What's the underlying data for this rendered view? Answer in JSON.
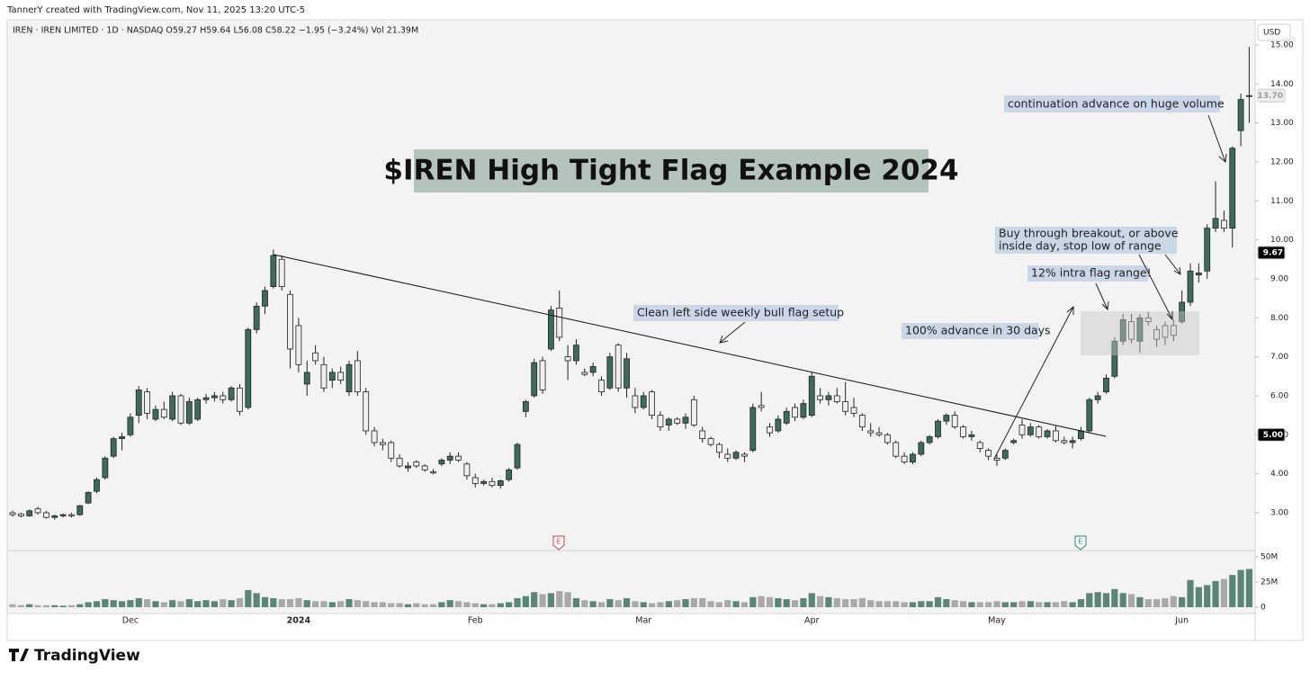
{
  "chart_data": {
    "type": "candlestick",
    "author_line": "TannerY created with TradingView.com, Nov 11, 2025 13:20 UTC-5",
    "symbol_line": "IREN · IREN LIMITED · 1D · NASDAQ   O59.27  H59.64  L56.08  C58.22  −1.95 (−3.24%)   Vol 21.39M",
    "currency": "USD",
    "title": "$IREN High Tight Flag Example 2024",
    "annotations": {
      "continuation": "continuation advance on huge volume",
      "buy": [
        "Buy through breakout, or above",
        "inside day, stop low of range"
      ],
      "range": "12% intra flag range!",
      "clean": "Clean left side weekly bull flag setup",
      "advance": "100% advance in 30 days"
    },
    "earnings": [
      "E",
      "E"
    ],
    "watermark": "TradingView",
    "categories": [
      null,
      null,
      null,
      null,
      null,
      null,
      null,
      null,
      null,
      null,
      null,
      null,
      null,
      null,
      "Dec",
      null,
      null,
      null,
      null,
      null,
      null,
      null,
      null,
      null,
      null,
      null,
      null,
      null,
      null,
      null,
      null,
      null,
      null,
      null,
      "2024",
      null,
      null,
      null,
      null,
      null,
      null,
      null,
      null,
      null,
      null,
      null,
      null,
      null,
      null,
      null,
      null,
      null,
      null,
      null,
      null,
      "Feb",
      null,
      null,
      null,
      null,
      null,
      null,
      null,
      null,
      null,
      null,
      null,
      null,
      null,
      null,
      null,
      null,
      null,
      null,
      null,
      "Mar",
      null,
      null,
      null,
      null,
      null,
      null,
      null,
      null,
      null,
      null,
      null,
      null,
      null,
      null,
      null,
      null,
      null,
      null,
      null,
      "Apr",
      null,
      null,
      null,
      null,
      null,
      null,
      null,
      null,
      null,
      null,
      null,
      null,
      null,
      null,
      null,
      null,
      null,
      null,
      null,
      null,
      null,
      "May",
      null,
      null,
      null,
      null,
      null,
      null,
      null,
      null,
      null,
      null,
      null,
      null,
      null,
      null,
      null,
      null,
      null,
      null,
      null,
      null,
      null,
      "Jun",
      null,
      null,
      null,
      null,
      null,
      null,
      null,
      null
    ],
    "open": [
      3.0,
      2.97,
      2.92,
      3.1,
      3.0,
      2.88,
      2.92,
      2.95,
      2.95,
      3.25,
      3.55,
      3.9,
      4.45,
      4.9,
      5.0,
      5.5,
      6.1,
      5.4,
      5.65,
      5.4,
      6.0,
      5.3,
      5.4,
      5.9,
      5.95,
      6.0,
      5.9,
      6.2,
      5.7,
      7.7,
      8.3,
      8.8,
      9.5,
      8.6,
      7.8,
      6.3,
      7.1,
      6.8,
      6.4,
      6.6,
      6.1,
      6.9,
      6.1,
      5.1,
      4.8,
      4.8,
      4.4,
      4.15,
      4.3,
      4.2,
      4.05,
      4.25,
      4.35,
      4.45,
      4.25,
      3.9,
      3.75,
      3.8,
      3.7,
      3.85,
      4.15,
      5.6,
      6.0,
      6.9,
      7.2,
      8.25,
      7.0,
      6.9,
      6.6,
      6.6,
      6.4,
      6.2,
      7.3,
      6.2,
      6.0,
      5.7,
      6.1,
      5.5,
      5.25,
      5.4,
      5.3,
      5.9,
      5.1,
      4.9,
      4.75,
      4.5,
      4.4,
      4.5,
      4.6,
      5.75,
      5.2,
      5.1,
      5.3,
      5.7,
      5.45,
      5.5,
      6.0,
      5.9,
      6.0,
      5.85,
      5.7,
      5.5,
      5.1,
      5.05,
      5.0,
      4.8,
      4.45,
      4.3,
      4.5,
      4.8,
      4.95,
      5.35,
      5.5,
      5.2,
      4.95,
      4.8,
      4.6,
      4.4,
      4.4,
      4.8,
      5.25,
      5.0,
      5.2,
      4.95,
      5.1,
      4.85,
      4.8,
      4.9,
      5.1,
      5.9,
      6.1,
      6.5,
      7.4,
      7.9,
      7.4,
      8.0,
      7.7,
      7.8,
      7.8,
      7.9,
      8.4,
      9.1,
      9.2,
      10.3,
      10.5,
      10.3,
      12.8,
      13.7
    ],
    "high": [
      3.05,
      3.0,
      3.08,
      3.15,
      3.05,
      2.95,
      2.98,
      3.0,
      3.2,
      3.55,
      3.9,
      4.45,
      4.95,
      5.05,
      5.55,
      6.25,
      6.2,
      5.75,
      5.85,
      6.1,
      6.05,
      5.95,
      5.95,
      6.05,
      6.1,
      6.1,
      6.25,
      6.3,
      7.75,
      8.4,
      8.8,
      9.75,
      9.6,
      8.7,
      8.0,
      6.9,
      7.3,
      7.0,
      6.7,
      6.75,
      6.9,
      7.15,
      6.2,
      5.2,
      4.9,
      4.85,
      4.5,
      4.3,
      4.35,
      4.25,
      4.12,
      4.4,
      4.55,
      4.55,
      4.3,
      4.0,
      3.85,
      3.9,
      3.85,
      4.15,
      4.8,
      5.9,
      6.95,
      7.0,
      8.3,
      8.7,
      7.3,
      7.45,
      6.7,
      6.85,
      6.5,
      7.1,
      7.35,
      7.1,
      6.2,
      6.1,
      6.15,
      5.6,
      5.45,
      5.45,
      5.55,
      6.0,
      5.2,
      4.95,
      4.8,
      4.65,
      4.6,
      4.55,
      5.8,
      6.1,
      5.3,
      5.5,
      5.7,
      5.8,
      5.9,
      6.6,
      6.2,
      6.1,
      6.2,
      6.35,
      5.95,
      5.55,
      5.3,
      5.2,
      5.05,
      4.85,
      4.55,
      4.55,
      4.85,
      5.0,
      5.4,
      5.55,
      5.6,
      5.25,
      5.1,
      4.85,
      4.65,
      4.5,
      4.65,
      4.9,
      5.4,
      5.3,
      5.25,
      5.15,
      5.25,
      4.95,
      4.95,
      5.2,
      5.95,
      6.1,
      6.55,
      7.5,
      8.1,
      8.1,
      8.1,
      8.15,
      7.8,
      7.9,
      7.95,
      8.7,
      9.4,
      9.4,
      10.4,
      11.5,
      10.75,
      12.4,
      13.75,
      14.95
    ],
    "low": [
      2.9,
      2.88,
      2.9,
      2.95,
      2.85,
      2.82,
      2.88,
      2.88,
      2.92,
      3.22,
      3.5,
      3.85,
      4.4,
      4.6,
      4.95,
      5.3,
      5.4,
      5.35,
      5.4,
      5.35,
      5.25,
      5.25,
      5.35,
      5.8,
      5.85,
      5.8,
      5.85,
      5.5,
      5.65,
      7.6,
      8.1,
      8.75,
      8.7,
      6.7,
      6.6,
      6.0,
      6.8,
      6.1,
      6.2,
      6.3,
      6.0,
      6.0,
      5.0,
      4.7,
      4.6,
      4.3,
      4.15,
      4.05,
      4.15,
      4.05,
      3.98,
      4.2,
      4.25,
      4.3,
      3.85,
      3.65,
      3.7,
      3.65,
      3.62,
      3.8,
      4.1,
      5.45,
      5.95,
      6.05,
      7.15,
      7.4,
      6.4,
      6.8,
      6.5,
      6.5,
      6.0,
      6.15,
      6.1,
      5.95,
      5.55,
      5.65,
      5.4,
      5.1,
      5.1,
      5.25,
      5.15,
      5.2,
      4.8,
      4.7,
      4.4,
      4.3,
      4.35,
      4.3,
      4.55,
      5.6,
      4.95,
      5.05,
      5.25,
      5.35,
      5.4,
      5.45,
      5.8,
      5.75,
      5.8,
      5.5,
      5.45,
      5.1,
      4.95,
      4.95,
      4.75,
      4.4,
      4.25,
      4.25,
      4.45,
      4.75,
      4.9,
      5.25,
      5.15,
      4.9,
      4.85,
      4.55,
      4.35,
      4.2,
      4.35,
      4.75,
      4.9,
      4.95,
      4.9,
      4.9,
      4.8,
      4.75,
      4.65,
      4.85,
      5.05,
      5.8,
      6.05,
      6.45,
      7.3,
      7.35,
      7.1,
      7.8,
      7.25,
      7.3,
      7.4,
      7.85,
      8.3,
      8.9,
      9.0,
      10.2,
      10.2,
      9.8,
      12.4,
      13.0
    ],
    "close": [
      2.95,
      2.92,
      3.05,
      3.0,
      2.88,
      2.92,
      2.95,
      2.92,
      3.18,
      3.52,
      3.85,
      4.4,
      4.9,
      4.95,
      5.45,
      6.15,
      5.55,
      5.65,
      5.45,
      6.0,
      5.3,
      5.85,
      5.9,
      5.95,
      6.0,
      5.9,
      6.2,
      5.6,
      7.7,
      8.3,
      8.7,
      9.6,
      8.8,
      7.2,
      6.8,
      6.6,
      6.9,
      6.2,
      6.6,
      6.4,
      6.8,
      6.1,
      5.1,
      4.8,
      4.75,
      4.4,
      4.2,
      4.2,
      4.2,
      4.1,
      4.02,
      4.35,
      4.45,
      4.35,
      3.95,
      3.75,
      3.8,
      3.7,
      3.82,
      4.1,
      4.75,
      5.85,
      6.85,
      6.15,
      8.2,
      7.5,
      6.9,
      7.3,
      6.55,
      6.75,
      6.1,
      7.0,
      6.2,
      6.95,
      5.7,
      6.0,
      5.5,
      5.2,
      5.4,
      5.3,
      5.45,
      5.25,
      4.9,
      4.75,
      4.55,
      4.4,
      4.55,
      4.45,
      5.7,
      5.7,
      5.05,
      5.4,
      5.6,
      5.45,
      5.8,
      6.5,
      5.9,
      6.0,
      5.85,
      5.6,
      5.55,
      5.2,
      5.05,
      5.0,
      4.8,
      4.45,
      4.3,
      4.5,
      4.8,
      4.95,
      5.35,
      5.5,
      5.2,
      4.95,
      5.0,
      4.65,
      4.45,
      4.35,
      4.6,
      4.85,
      5.0,
      5.2,
      4.95,
      5.1,
      4.85,
      4.8,
      4.85,
      5.1,
      5.9,
      6.0,
      6.45,
      7.4,
      7.95,
      7.45,
      8.0,
      7.9,
      7.45,
      7.5,
      7.55,
      8.4,
      9.2,
      9.15,
      10.3,
      10.55,
      10.3,
      12.35,
      13.6,
      13.7
    ],
    "volume": [
      3000000,
      2000000,
      3000000,
      2000000,
      2000000,
      2000000,
      1500000,
      2000000,
      3000000,
      5000000,
      6000000,
      8000000,
      7000000,
      6000000,
      7000000,
      9000000,
      8000000,
      6000000,
      5000000,
      7000000,
      6000000,
      8000000,
      6000000,
      7000000,
      6000000,
      8000000,
      7000000,
      9000000,
      17000000,
      14000000,
      10000000,
      9000000,
      8000000,
      8000000,
      9000000,
      7000000,
      6000000,
      6000000,
      5000000,
      6000000,
      8000000,
      7000000,
      6000000,
      5000000,
      5000000,
      4000000,
      4000000,
      3000000,
      4000000,
      3000000,
      3000000,
      5000000,
      7000000,
      6000000,
      5000000,
      4000000,
      3000000,
      3000000,
      4000000,
      5000000,
      9000000,
      11000000,
      15000000,
      13000000,
      14000000,
      16000000,
      15000000,
      9000000,
      7000000,
      6000000,
      5000000,
      8000000,
      7000000,
      9000000,
      6000000,
      5000000,
      4000000,
      5000000,
      6000000,
      7000000,
      8000000,
      9000000,
      9000000,
      6000000,
      5000000,
      7000000,
      6000000,
      5000000,
      10000000,
      11000000,
      10000000,
      9000000,
      8000000,
      7000000,
      9000000,
      14000000,
      11000000,
      10000000,
      9000000,
      8000000,
      8000000,
      9000000,
      7000000,
      6000000,
      6000000,
      6000000,
      5000000,
      5000000,
      6000000,
      6000000,
      10000000,
      8000000,
      7000000,
      6000000,
      5000000,
      5000000,
      5000000,
      6000000,
      5000000,
      5000000,
      6000000,
      6000000,
      5000000,
      5000000,
      5000000,
      6000000,
      5000000,
      8000000,
      14000000,
      15000000,
      14000000,
      18000000,
      14000000,
      13000000,
      10000000,
      8000000,
      8000000,
      9000000,
      11000000,
      10000000,
      27000000,
      20000000,
      22000000,
      26000000,
      28000000,
      32000000,
      37000000,
      38000000
    ],
    "ylim": [
      2.03,
      15.46
    ],
    "yticks": [
      {
        "value": 3,
        "label": "3.00"
      },
      {
        "value": 4,
        "label": "4.00"
      },
      {
        "value": 5,
        "label": "5.00"
      },
      {
        "value": 6,
        "label": "6.00"
      },
      {
        "value": 7,
        "label": "7.00"
      },
      {
        "value": 8,
        "label": "8.00"
      },
      {
        "value": 9,
        "label": "9.00"
      },
      {
        "value": 10,
        "label": "10.00"
      },
      {
        "value": 11,
        "label": "11.00"
      },
      {
        "value": 12,
        "label": "12.00"
      },
      {
        "value": 13,
        "label": "13.00"
      },
      {
        "value": 14,
        "label": "14.00"
      },
      {
        "value": 15,
        "label": "15.00"
      }
    ],
    "volume_ylim": [
      0,
      56250000
    ],
    "volume_ticks": [
      {
        "value": 50000000,
        "label": "50M"
      },
      {
        "value": 25000000,
        "label": "25M"
      },
      0
    ],
    "price_tags": [
      {
        "value": 13.7,
        "label": "13.70",
        "color": "#eeeeee",
        "text_color": "#9a9a9a"
      },
      {
        "value": 9.67,
        "label": "9.67",
        "color": "#000000",
        "text_color": "#ffffff"
      },
      {
        "value": 5,
        "label": "5.00",
        "color": "#000000",
        "text_color": "#ffffff"
      }
    ],
    "up_color": "#3f6b5f",
    "down_color": "#efefef",
    "volume_up_color": "#5b8576",
    "volume_down_color": "#a9a9a9",
    "grid": false
  }
}
